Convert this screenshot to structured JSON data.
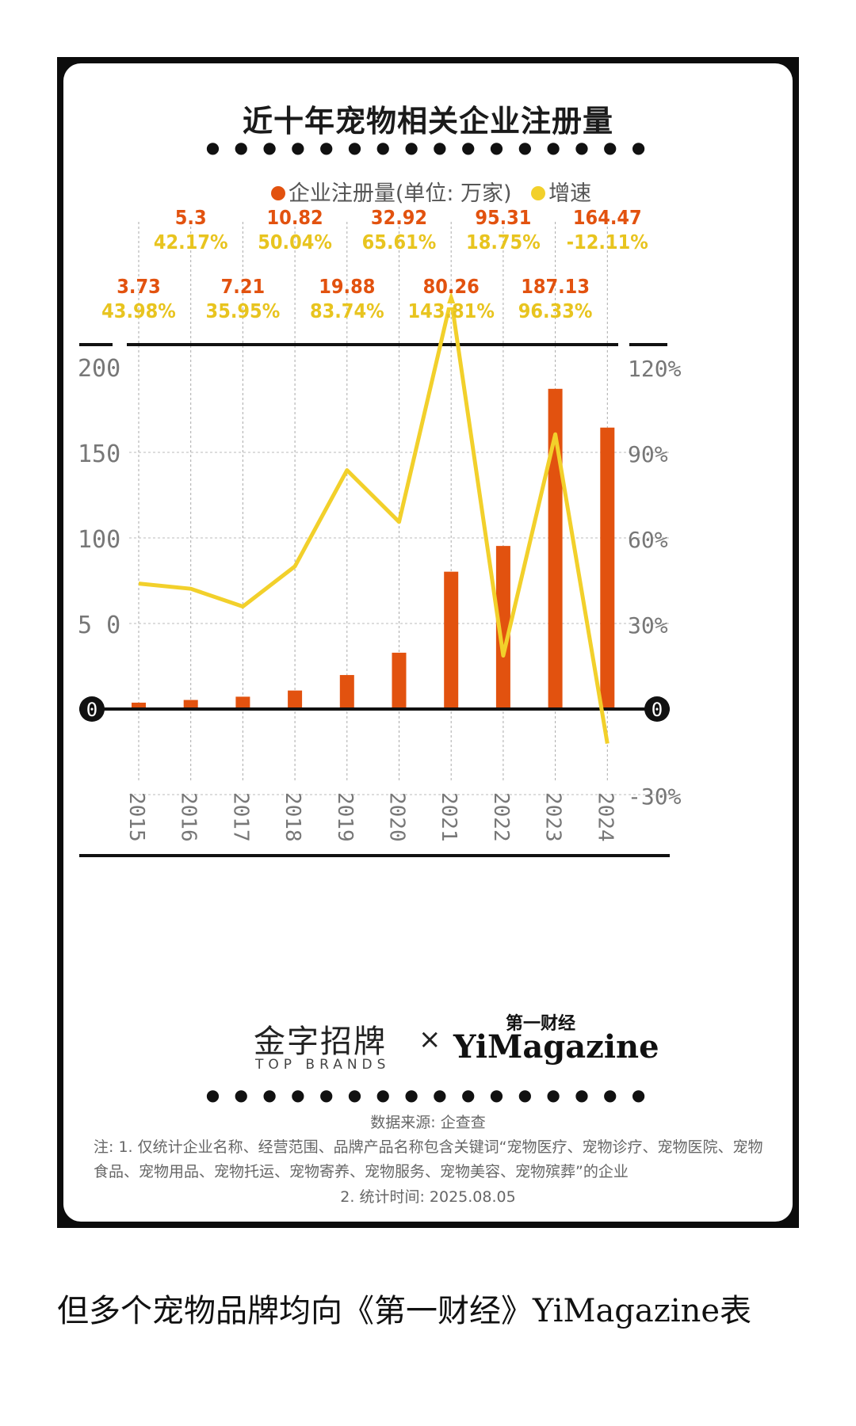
{
  "title": "近十年宠物相关企业注册量",
  "legend": {
    "bar_label": "企业注册量(单位: 万家)",
    "line_label": "增速"
  },
  "colors": {
    "bar": "#e2520f",
    "line": "#f2d02b",
    "bar_label": "#e2520f",
    "line_label": "#e8c41f",
    "axis": "#111111"
  },
  "chart_data": {
    "type": "bar",
    "categories": [
      "2015",
      "2016",
      "2017",
      "2018",
      "2019",
      "2020",
      "2021",
      "2022",
      "2023",
      "2024"
    ],
    "series": [
      {
        "name": "企业注册量(单位: 万家)",
        "type": "bar",
        "axis": "left",
        "values": [
          3.73,
          5.3,
          7.21,
          10.82,
          19.88,
          32.92,
          80.26,
          95.31,
          187.13,
          164.47
        ],
        "labels": [
          "3.73",
          "5.3",
          "7.21",
          "10.82",
          "19.88",
          "32.92",
          "80.26",
          "95.31",
          "187.13",
          "164.47"
        ]
      },
      {
        "name": "增速",
        "type": "line",
        "axis": "right",
        "values": [
          43.98,
          42.17,
          35.95,
          50.04,
          83.74,
          65.61,
          143.81,
          18.75,
          96.33,
          -12.11
        ],
        "labels": [
          "43.98%",
          "42.17%",
          "35.95%",
          "50.04%",
          "83.74%",
          "65.61%",
          "143.81%",
          "18.75%",
          "96.33%",
          "-12.11%"
        ]
      }
    ],
    "left_axis": {
      "ticks": [
        "0",
        "5 0",
        "100",
        "150",
        "200"
      ],
      "values": [
        0,
        50,
        100,
        150,
        200
      ],
      "range": [
        0,
        200
      ]
    },
    "right_axis": {
      "ticks": [
        "-30%",
        "0",
        "30%",
        "60%",
        "90%",
        "120%"
      ],
      "values": [
        -30,
        0,
        30,
        60,
        90,
        120
      ],
      "range": [
        -30,
        120
      ]
    },
    "grid": true,
    "legend_position": "top"
  },
  "brand": {
    "left_cn": "金字招牌",
    "left_en": "TOP BRANDS",
    "cross": "×",
    "right_cn": "第一财经",
    "right_en": "YiMagazine"
  },
  "dots": "● ● ● ● ● ● ● ● ● ● ● ● ● ● ● ●",
  "source": "数据来源: 企查查",
  "note_line1": "注: 1. 仅统计企业名称、经营范围、品牌产品名称包含关键词“宠物医疗、宠物诊疗、宠物医院、宠物食品、宠物用品、宠物托运、宠物寄养、宠物服务、宠物美容、宠物殡葬”的企业",
  "note_line2": "2. 统计时间: 2025.08.05",
  "caption": "但多个宠物品牌均向《第一财经》YiMagazine表"
}
